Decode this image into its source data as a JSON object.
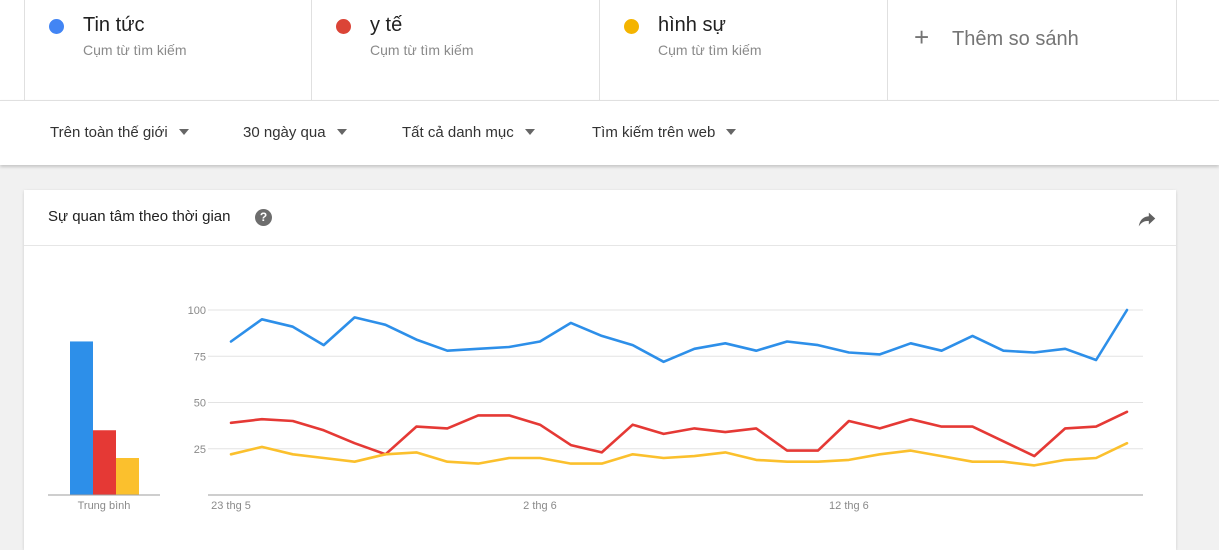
{
  "terms": [
    {
      "name": "Tin tức",
      "sub": "Cụm từ tìm kiếm",
      "color": "#4285f4"
    },
    {
      "name": "y tế",
      "sub": "Cụm từ tìm kiếm",
      "color": "#db4437"
    },
    {
      "name": "hình sự",
      "sub": "Cụm từ tìm kiếm",
      "color": "#f4b400"
    }
  ],
  "add_compare": {
    "icon": "plus-icon",
    "label": "Thêm so sánh"
  },
  "filters": [
    {
      "label": "Trên toàn thế giới"
    },
    {
      "label": "30 ngày qua"
    },
    {
      "label": "Tất cả danh mục"
    },
    {
      "label": "Tìm kiếm trên web"
    }
  ],
  "card": {
    "title": "Sự quan tâm theo thời gian",
    "help_icon": "question-icon",
    "help_glyph": "?",
    "share_icon": "share-icon"
  },
  "chart_data": {
    "type": "line",
    "ylim": [
      0,
      100
    ],
    "yticks": [
      25,
      50,
      75,
      100
    ],
    "xtick_labels": [
      {
        "index": 0,
        "label": "23 thg 5"
      },
      {
        "index": 10,
        "label": "2 thg 6"
      },
      {
        "index": 20,
        "label": "12 thg 6"
      }
    ],
    "series": [
      {
        "name": "Tin tức",
        "color": "#2d8fe9",
        "values": [
          83,
          95,
          91,
          81,
          96,
          92,
          84,
          78,
          79,
          80,
          83,
          93,
          86,
          81,
          72,
          79,
          82,
          78,
          83,
          81,
          77,
          76,
          82,
          78,
          86,
          78,
          77,
          79,
          73,
          100
        ]
      },
      {
        "name": "y tế",
        "color": "#e53935",
        "values": [
          39,
          41,
          40,
          35,
          28,
          22,
          37,
          36,
          43,
          43,
          38,
          27,
          23,
          38,
          33,
          36,
          34,
          36,
          24,
          24,
          40,
          36,
          41,
          37,
          37,
          29,
          21,
          36,
          37,
          45
        ]
      },
      {
        "name": "hình sự",
        "color": "#fbc02d",
        "values": [
          22,
          26,
          22,
          20,
          18,
          22,
          23,
          18,
          17,
          20,
          20,
          17,
          17,
          22,
          20,
          21,
          23,
          19,
          18,
          18,
          19,
          22,
          24,
          21,
          18,
          18,
          16,
          19,
          20,
          28
        ]
      }
    ],
    "average": {
      "label": "Trung bình",
      "values": [
        83,
        35,
        20
      ]
    }
  }
}
